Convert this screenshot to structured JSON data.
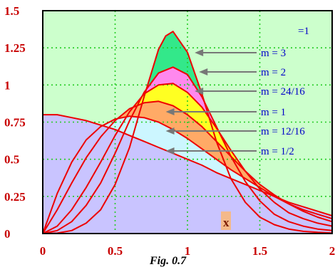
{
  "chart_data": {
    "type": "area",
    "x_ticks": [
      "0",
      "0.5",
      "1",
      "1.5",
      "2"
    ],
    "y_ticks": [
      "0",
      "0.25",
      "0.5",
      "0.75",
      "1",
      "1.25",
      "1.5"
    ],
    "xlim": [
      0,
      2
    ],
    "ylim": [
      0,
      1.5
    ],
    "grid": true,
    "corner_label": "=1",
    "x_label": "x",
    "caption": "Fig. 0.7",
    "annotations": [
      {
        "label": "m = 3",
        "arrow_to": [
          1.05,
          1.22
        ]
      },
      {
        "label": "m = 2",
        "arrow_to": [
          1.08,
          1.07
        ]
      },
      {
        "label": "m = 24/16",
        "arrow_to": [
          1.05,
          0.93
        ]
      },
      {
        "label": "m = 1",
        "arrow_to": [
          0.85,
          0.84
        ]
      },
      {
        "label": "m = 12/16",
        "arrow_to": [
          0.85,
          0.72
        ]
      },
      {
        "label": "m = 1/2",
        "arrow_to": [
          0.85,
          0.56
        ]
      }
    ],
    "series": [
      {
        "m": 3,
        "fill": "#33e88a",
        "x": [
          0,
          0.1,
          0.2,
          0.3,
          0.4,
          0.5,
          0.6,
          0.7,
          0.8,
          0.85,
          0.9,
          1.0,
          1.1,
          1.2,
          1.3,
          1.4,
          1.5,
          1.6,
          1.7,
          1.8,
          1.9,
          2.0
        ],
        "y": [
          0,
          0.003,
          0.02,
          0.07,
          0.16,
          0.33,
          0.58,
          0.92,
          1.24,
          1.33,
          1.36,
          1.22,
          0.94,
          0.62,
          0.37,
          0.21,
          0.11,
          0.06,
          0.03,
          0.015,
          0.008,
          0.004
        ]
      },
      {
        "m": 2,
        "fill": "#ff88ee",
        "x": [
          0,
          0.1,
          0.2,
          0.3,
          0.4,
          0.5,
          0.6,
          0.7,
          0.8,
          0.9,
          1.0,
          1.1,
          1.2,
          1.3,
          1.4,
          1.5,
          1.6,
          1.7,
          1.8,
          1.9,
          2.0
        ],
        "y": [
          0,
          0.02,
          0.08,
          0.19,
          0.34,
          0.54,
          0.76,
          0.95,
          1.08,
          1.12,
          1.07,
          0.92,
          0.72,
          0.52,
          0.35,
          0.22,
          0.13,
          0.08,
          0.05,
          0.03,
          0.02
        ]
      },
      {
        "m": 1.5,
        "fill": "#ffff22",
        "x": [
          0,
          0.1,
          0.2,
          0.3,
          0.4,
          0.5,
          0.6,
          0.7,
          0.8,
          0.9,
          1.0,
          1.1,
          1.2,
          1.3,
          1.4,
          1.5,
          1.6,
          1.7,
          1.8,
          1.9,
          2.0
        ],
        "y": [
          0,
          0.05,
          0.16,
          0.31,
          0.48,
          0.66,
          0.82,
          0.94,
          1.0,
          1.01,
          0.95,
          0.85,
          0.71,
          0.56,
          0.42,
          0.3,
          0.21,
          0.14,
          0.1,
          0.07,
          0.05
        ]
      },
      {
        "m": 1,
        "fill": "#ffaa66",
        "x": [
          0,
          0.1,
          0.2,
          0.3,
          0.4,
          0.5,
          0.6,
          0.7,
          0.8,
          0.9,
          1.0,
          1.1,
          1.2,
          1.3,
          1.4,
          1.5,
          1.6,
          1.7,
          1.8,
          1.9,
          2.0
        ],
        "y": [
          0,
          0.16,
          0.34,
          0.51,
          0.65,
          0.76,
          0.84,
          0.88,
          0.89,
          0.86,
          0.8,
          0.72,
          0.62,
          0.52,
          0.42,
          0.33,
          0.26,
          0.2,
          0.15,
          0.11,
          0.08
        ]
      },
      {
        "m": 0.75,
        "fill": "#ccf6ff",
        "x": [
          0,
          0.1,
          0.2,
          0.3,
          0.4,
          0.5,
          0.6,
          0.7,
          0.8,
          0.9,
          1.0,
          1.1,
          1.2,
          1.3,
          1.4,
          1.5,
          1.6,
          1.7,
          1.8,
          1.9,
          2.0
        ],
        "y": [
          0,
          0.27,
          0.48,
          0.63,
          0.72,
          0.77,
          0.79,
          0.78,
          0.75,
          0.7,
          0.64,
          0.57,
          0.5,
          0.43,
          0.37,
          0.31,
          0.25,
          0.2,
          0.16,
          0.13,
          0.1
        ]
      },
      {
        "m": 0.5,
        "fill": "#c9c4ff",
        "x": [
          0,
          0.1,
          0.2,
          0.3,
          0.4,
          0.5,
          0.6,
          0.7,
          0.8,
          0.9,
          1.0,
          1.1,
          1.2,
          1.3,
          1.4,
          1.5,
          1.6,
          1.7,
          1.8,
          1.9,
          2.0
        ],
        "y": [
          0.8,
          0.8,
          0.78,
          0.76,
          0.73,
          0.7,
          0.66,
          0.62,
          0.58,
          0.54,
          0.5,
          0.46,
          0.41,
          0.37,
          0.33,
          0.29,
          0.25,
          0.21,
          0.18,
          0.15,
          0.12
        ]
      }
    ]
  }
}
